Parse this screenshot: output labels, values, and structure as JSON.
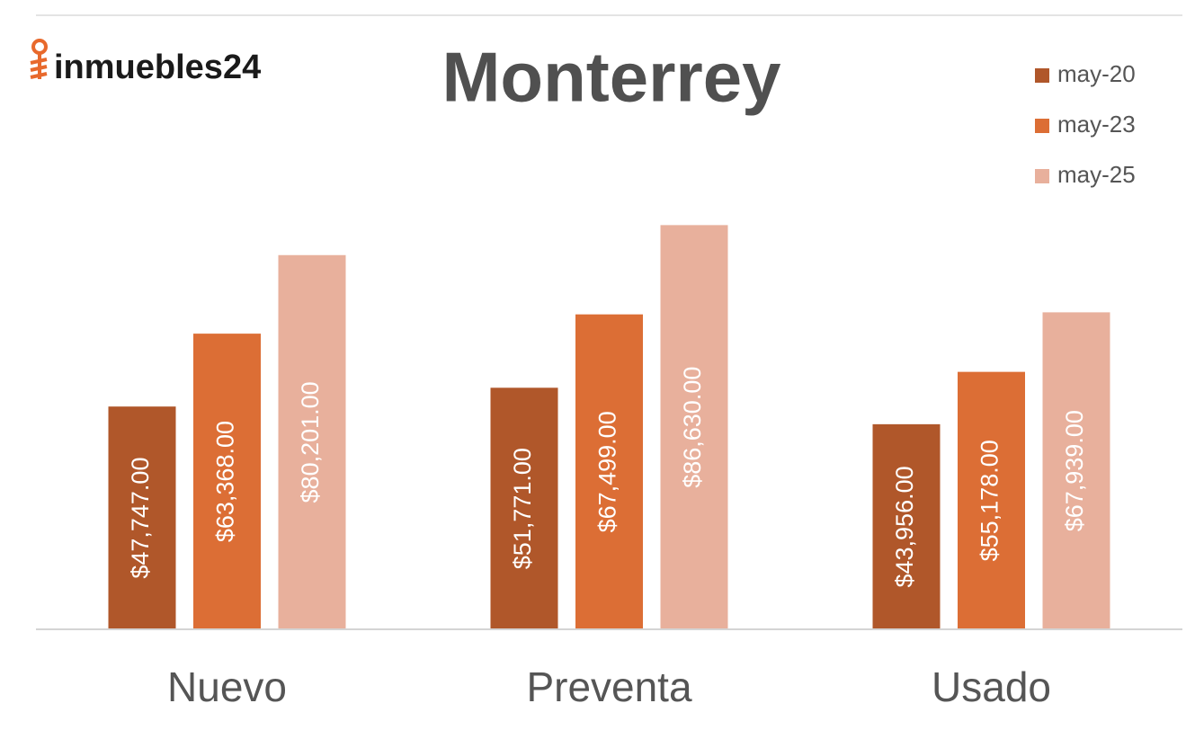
{
  "logo": "inmuebles24",
  "chart_data": {
    "type": "bar",
    "title": "Monterrey",
    "categories": [
      "Nuevo",
      "Preventa",
      "Usado"
    ],
    "series": [
      {
        "name": "may-20",
        "color": "#b0572a",
        "values": [
          47747,
          51771,
          43956
        ],
        "value_labels": [
          "$47,747.00",
          "$51,771.00",
          "$43,956.00"
        ]
      },
      {
        "name": "may-23",
        "color": "#dc6e35",
        "values": [
          63368,
          67499,
          55178
        ],
        "value_labels": [
          "$63,368.00",
          "$67,499.00",
          "$55,178.00"
        ]
      },
      {
        "name": "may-25",
        "color": "#e8b09c",
        "values": [
          80201,
          86630,
          67939
        ],
        "value_labels": [
          "$80,201.00",
          "$86,630.00",
          "$67,939.00"
        ]
      }
    ],
    "ylim": [
      0,
      100000
    ],
    "legend": "top-right"
  }
}
